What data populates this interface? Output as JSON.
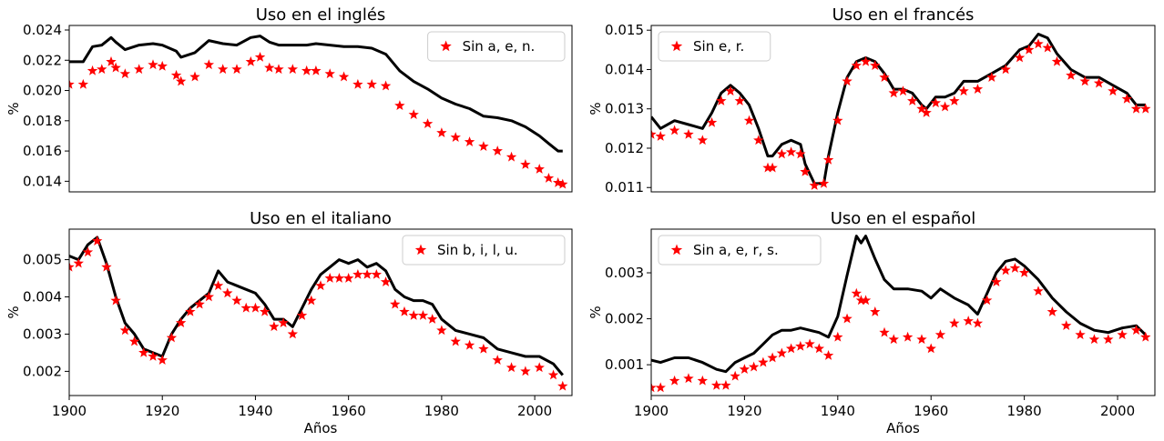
{
  "figure": {
    "x_label_shared": "Años"
  },
  "chart_data": [
    {
      "type": "line",
      "title": "Uso en el inglés",
      "xlabel": "",
      "ylabel": "%",
      "xlim": [
        1900,
        2008
      ],
      "ylim": [
        0.0133,
        0.0243
      ],
      "yticks": [
        0.014,
        0.016,
        0.018,
        0.02,
        0.022,
        0.024
      ],
      "ytick_labels": [
        "0.014",
        "0.016",
        "0.018",
        "0.020",
        "0.022",
        "0.024"
      ],
      "xticks": [],
      "xtick_labels": [],
      "legend": {
        "position": "top-right",
        "label": "Sin a, e, n.",
        "marker_color": "#ff0000"
      },
      "series": [
        {
          "role": "total",
          "color": "#000000",
          "style": "line",
          "x": [
            1900,
            1903,
            1905,
            1907,
            1909,
            1910,
            1912,
            1915,
            1918,
            1920,
            1923,
            1924,
            1927,
            1930,
            1933,
            1936,
            1939,
            1941,
            1943,
            1945,
            1948,
            1951,
            1953,
            1956,
            1959,
            1962,
            1965,
            1968,
            1971,
            1974,
            1977,
            1980,
            1983,
            1986,
            1989,
            1992,
            1995,
            1998,
            2001,
            2003,
            2005,
            2006
          ],
          "y": [
            0.0219,
            0.0219,
            0.0229,
            0.023,
            0.0235,
            0.0232,
            0.0227,
            0.023,
            0.0231,
            0.023,
            0.0226,
            0.0222,
            0.0225,
            0.0233,
            0.0231,
            0.023,
            0.0235,
            0.0236,
            0.0232,
            0.023,
            0.023,
            0.023,
            0.0231,
            0.023,
            0.0229,
            0.0229,
            0.0228,
            0.0224,
            0.0213,
            0.0206,
            0.0201,
            0.0195,
            0.0191,
            0.0188,
            0.0183,
            0.0182,
            0.018,
            0.0176,
            0.017,
            0.0165,
            0.016,
            0.016
          ]
        },
        {
          "role": "subset",
          "color": "#ff0000",
          "style": "markers",
          "x": [
            1900,
            1903,
            1905,
            1907,
            1909,
            1910,
            1912,
            1915,
            1918,
            1920,
            1923,
            1924,
            1927,
            1930,
            1933,
            1936,
            1939,
            1941,
            1943,
            1945,
            1948,
            1951,
            1953,
            1956,
            1959,
            1962,
            1965,
            1968,
            1971,
            1974,
            1977,
            1980,
            1983,
            1986,
            1989,
            1992,
            1995,
            1998,
            2001,
            2003,
            2005,
            2006
          ],
          "y": [
            0.0204,
            0.0204,
            0.0213,
            0.0214,
            0.0219,
            0.0215,
            0.0211,
            0.0214,
            0.0217,
            0.0216,
            0.021,
            0.0206,
            0.0209,
            0.0217,
            0.0214,
            0.0214,
            0.0219,
            0.0222,
            0.0215,
            0.0214,
            0.0214,
            0.0213,
            0.0213,
            0.0211,
            0.0209,
            0.0204,
            0.0204,
            0.0203,
            0.019,
            0.0184,
            0.0178,
            0.0172,
            0.0169,
            0.0166,
            0.0163,
            0.016,
            0.0156,
            0.0151,
            0.0148,
            0.0142,
            0.0139,
            0.0138
          ]
        }
      ]
    },
    {
      "type": "line",
      "title": "Uso en el francés",
      "xlabel": "",
      "ylabel": "%",
      "xlim": [
        1900,
        2008
      ],
      "ylim": [
        0.01089,
        0.01512
      ],
      "yticks": [
        0.011,
        0.012,
        0.013,
        0.014,
        0.015
      ],
      "ytick_labels": [
        "0.011",
        "0.012",
        "0.013",
        "0.014",
        "0.015"
      ],
      "xticks": [],
      "xtick_labels": [],
      "legend": {
        "position": "top-left",
        "label": "Sin e, r.",
        "marker_color": "#ff0000"
      },
      "series": [
        {
          "role": "total",
          "color": "#000000",
          "style": "line",
          "x": [
            1900,
            1902,
            1905,
            1908,
            1911,
            1913,
            1915,
            1917,
            1919,
            1921,
            1923,
            1925,
            1926,
            1928,
            1930,
            1932,
            1933,
            1935,
            1937,
            1938,
            1940,
            1942,
            1944,
            1946,
            1948,
            1950,
            1952,
            1954,
            1956,
            1958,
            1959,
            1961,
            1963,
            1965,
            1967,
            1970,
            1973,
            1976,
            1979,
            1981,
            1983,
            1985,
            1987,
            1990,
            1993,
            1996,
            1999,
            2002,
            2004,
            2006
          ],
          "y": [
            0.0128,
            0.0125,
            0.0127,
            0.0126,
            0.0125,
            0.0129,
            0.0134,
            0.0136,
            0.0134,
            0.0131,
            0.0125,
            0.0118,
            0.0118,
            0.0121,
            0.0122,
            0.0121,
            0.0116,
            0.0111,
            0.0111,
            0.0118,
            0.0129,
            0.0138,
            0.0142,
            0.0143,
            0.0142,
            0.0139,
            0.0135,
            0.0135,
            0.0134,
            0.0131,
            0.013,
            0.0133,
            0.0133,
            0.0134,
            0.0137,
            0.0137,
            0.0139,
            0.0141,
            0.0145,
            0.0146,
            0.0149,
            0.0148,
            0.0144,
            0.014,
            0.0138,
            0.0138,
            0.0136,
            0.0134,
            0.0131,
            0.0131
          ]
        },
        {
          "role": "subset",
          "color": "#ff0000",
          "style": "markers",
          "x": [
            1900,
            1902,
            1905,
            1908,
            1911,
            1913,
            1915,
            1917,
            1919,
            1921,
            1923,
            1925,
            1926,
            1928,
            1930,
            1932,
            1933,
            1935,
            1937,
            1938,
            1940,
            1942,
            1944,
            1946,
            1948,
            1950,
            1952,
            1954,
            1956,
            1958,
            1959,
            1961,
            1963,
            1965,
            1967,
            1970,
            1973,
            1976,
            1979,
            1981,
            1983,
            1985,
            1987,
            1990,
            1993,
            1996,
            1999,
            2002,
            2004,
            2006
          ],
          "y": [
            0.01235,
            0.0123,
            0.01245,
            0.01235,
            0.0122,
            0.01265,
            0.0132,
            0.01345,
            0.0132,
            0.0127,
            0.0122,
            0.0115,
            0.0115,
            0.01185,
            0.0119,
            0.01185,
            0.0114,
            0.01105,
            0.0111,
            0.0117,
            0.0127,
            0.0137,
            0.0141,
            0.0142,
            0.0141,
            0.0138,
            0.0134,
            0.01345,
            0.0132,
            0.013,
            0.0129,
            0.01315,
            0.01305,
            0.0132,
            0.01345,
            0.0135,
            0.0138,
            0.014,
            0.0143,
            0.0145,
            0.01465,
            0.01455,
            0.0142,
            0.01385,
            0.0137,
            0.01365,
            0.01345,
            0.01325,
            0.013,
            0.013
          ]
        }
      ]
    },
    {
      "type": "line",
      "title": "Uso en el italiano",
      "xlabel": "Años",
      "ylabel": "%",
      "xlim": [
        1900,
        2008
      ],
      "ylim": [
        0.00135,
        0.00582
      ],
      "yticks": [
        0.002,
        0.003,
        0.004,
        0.005
      ],
      "ytick_labels": [
        "0.002",
        "0.003",
        "0.004",
        "0.005"
      ],
      "xticks": [
        1900,
        1920,
        1940,
        1960,
        1980,
        2000
      ],
      "xtick_labels": [
        "1900",
        "1920",
        "1940",
        "1960",
        "1980",
        "2000"
      ],
      "legend": {
        "position": "top-right",
        "label": "Sin b, i, l, u.",
        "marker_color": "#ff0000"
      },
      "series": [
        {
          "role": "total",
          "color": "#000000",
          "style": "line",
          "x": [
            1900,
            1902,
            1904,
            1906,
            1908,
            1910,
            1912,
            1914,
            1916,
            1918,
            1920,
            1922,
            1924,
            1926,
            1928,
            1930,
            1932,
            1934,
            1936,
            1938,
            1940,
            1942,
            1944,
            1946,
            1948,
            1950,
            1952,
            1954,
            1956,
            1958,
            1960,
            1962,
            1964,
            1966,
            1968,
            1970,
            1972,
            1974,
            1976,
            1978,
            1980,
            1983,
            1986,
            1989,
            1992,
            1995,
            1998,
            2001,
            2004,
            2006
          ],
          "y": [
            0.0051,
            0.005,
            0.0054,
            0.0056,
            0.0049,
            0.004,
            0.0033,
            0.003,
            0.0026,
            0.0025,
            0.0024,
            0.003,
            0.0034,
            0.0037,
            0.0039,
            0.0041,
            0.0047,
            0.0044,
            0.0043,
            0.0042,
            0.0041,
            0.0038,
            0.0034,
            0.0034,
            0.0032,
            0.0037,
            0.0042,
            0.0046,
            0.0048,
            0.005,
            0.0049,
            0.005,
            0.0048,
            0.0049,
            0.0047,
            0.0042,
            0.004,
            0.0039,
            0.0039,
            0.0038,
            0.0034,
            0.0031,
            0.003,
            0.0029,
            0.0026,
            0.0025,
            0.0024,
            0.0024,
            0.0022,
            0.0019
          ]
        },
        {
          "role": "subset",
          "color": "#ff0000",
          "style": "markers",
          "x": [
            1900,
            1902,
            1904,
            1906,
            1908,
            1910,
            1912,
            1914,
            1916,
            1918,
            1920,
            1922,
            1924,
            1926,
            1928,
            1930,
            1932,
            1934,
            1936,
            1938,
            1940,
            1942,
            1944,
            1946,
            1948,
            1950,
            1952,
            1954,
            1956,
            1958,
            1960,
            1962,
            1964,
            1966,
            1968,
            1970,
            1972,
            1974,
            1976,
            1978,
            1980,
            1983,
            1986,
            1989,
            1992,
            1995,
            1998,
            2001,
            2004,
            2006
          ],
          "y": [
            0.0048,
            0.0049,
            0.0052,
            0.0055,
            0.0048,
            0.0039,
            0.0031,
            0.0028,
            0.0025,
            0.0024,
            0.0023,
            0.0029,
            0.0033,
            0.0036,
            0.0038,
            0.004,
            0.0043,
            0.0041,
            0.0039,
            0.0037,
            0.0037,
            0.0036,
            0.0032,
            0.0033,
            0.003,
            0.0035,
            0.0039,
            0.0043,
            0.0045,
            0.0045,
            0.0045,
            0.0046,
            0.0046,
            0.0046,
            0.0044,
            0.0038,
            0.0036,
            0.0035,
            0.0035,
            0.0034,
            0.0031,
            0.0028,
            0.0027,
            0.0026,
            0.0023,
            0.0021,
            0.002,
            0.0021,
            0.0019,
            0.0016
          ]
        }
      ]
    },
    {
      "type": "line",
      "title": "Uso en el español",
      "xlabel": "Años",
      "ylabel": "%",
      "xlim": [
        1900,
        2008
      ],
      "ylim": [
        0.00033,
        0.00395
      ],
      "yticks": [
        0.001,
        0.002,
        0.003
      ],
      "ytick_labels": [
        "0.001",
        "0.002",
        "0.003"
      ],
      "xticks": [
        1900,
        1920,
        1940,
        1960,
        1980,
        2000
      ],
      "xtick_labels": [
        "1900",
        "1920",
        "1940",
        "1960",
        "1980",
        "2000"
      ],
      "legend": {
        "position": "top-left",
        "label": "Sin a, e, r, s.",
        "marker_color": "#ff0000"
      },
      "series": [
        {
          "role": "total",
          "color": "#000000",
          "style": "line",
          "x": [
            1900,
            1902,
            1905,
            1908,
            1911,
            1914,
            1916,
            1918,
            1920,
            1922,
            1924,
            1926,
            1928,
            1930,
            1932,
            1934,
            1936,
            1938,
            1940,
            1942,
            1944,
            1945,
            1946,
            1948,
            1950,
            1952,
            1955,
            1958,
            1960,
            1962,
            1965,
            1968,
            1970,
            1972,
            1974,
            1976,
            1978,
            1980,
            1983,
            1986,
            1989,
            1992,
            1995,
            1998,
            2001,
            2004,
            2006
          ],
          "y": [
            0.0011,
            0.00105,
            0.00115,
            0.00115,
            0.00105,
            0.0009,
            0.00085,
            0.00105,
            0.00115,
            0.00125,
            0.00145,
            0.00165,
            0.00175,
            0.00175,
            0.0018,
            0.00175,
            0.0017,
            0.0016,
            0.00205,
            0.00295,
            0.0038,
            0.00365,
            0.0038,
            0.0033,
            0.00285,
            0.00265,
            0.00265,
            0.0026,
            0.00245,
            0.00265,
            0.00245,
            0.0023,
            0.0021,
            0.00255,
            0.003,
            0.00325,
            0.0033,
            0.00315,
            0.00285,
            0.00245,
            0.00215,
            0.0019,
            0.00175,
            0.0017,
            0.0018,
            0.00185,
            0.00165
          ]
        },
        {
          "role": "subset",
          "color": "#ff0000",
          "style": "markers",
          "x": [
            1900,
            1902,
            1905,
            1908,
            1911,
            1914,
            1916,
            1918,
            1920,
            1922,
            1924,
            1926,
            1928,
            1930,
            1932,
            1934,
            1936,
            1938,
            1940,
            1942,
            1944,
            1945,
            1946,
            1948,
            1950,
            1952,
            1955,
            1958,
            1960,
            1962,
            1965,
            1968,
            1970,
            1972,
            1974,
            1976,
            1978,
            1980,
            1983,
            1986,
            1989,
            1992,
            1995,
            1998,
            2001,
            2004,
            2006
          ],
          "y": [
            0.0005,
            0.0005,
            0.00065,
            0.0007,
            0.00065,
            0.00055,
            0.00055,
            0.00075,
            0.0009,
            0.00095,
            0.00105,
            0.00115,
            0.00125,
            0.00135,
            0.0014,
            0.00145,
            0.00135,
            0.0012,
            0.0016,
            0.002,
            0.00255,
            0.0024,
            0.0024,
            0.00215,
            0.0017,
            0.00155,
            0.0016,
            0.00155,
            0.00135,
            0.00165,
            0.0019,
            0.00195,
            0.0019,
            0.0024,
            0.0028,
            0.00305,
            0.0031,
            0.003,
            0.0026,
            0.00215,
            0.00185,
            0.00165,
            0.00155,
            0.00155,
            0.00165,
            0.00175,
            0.0016
          ]
        }
      ]
    }
  ]
}
